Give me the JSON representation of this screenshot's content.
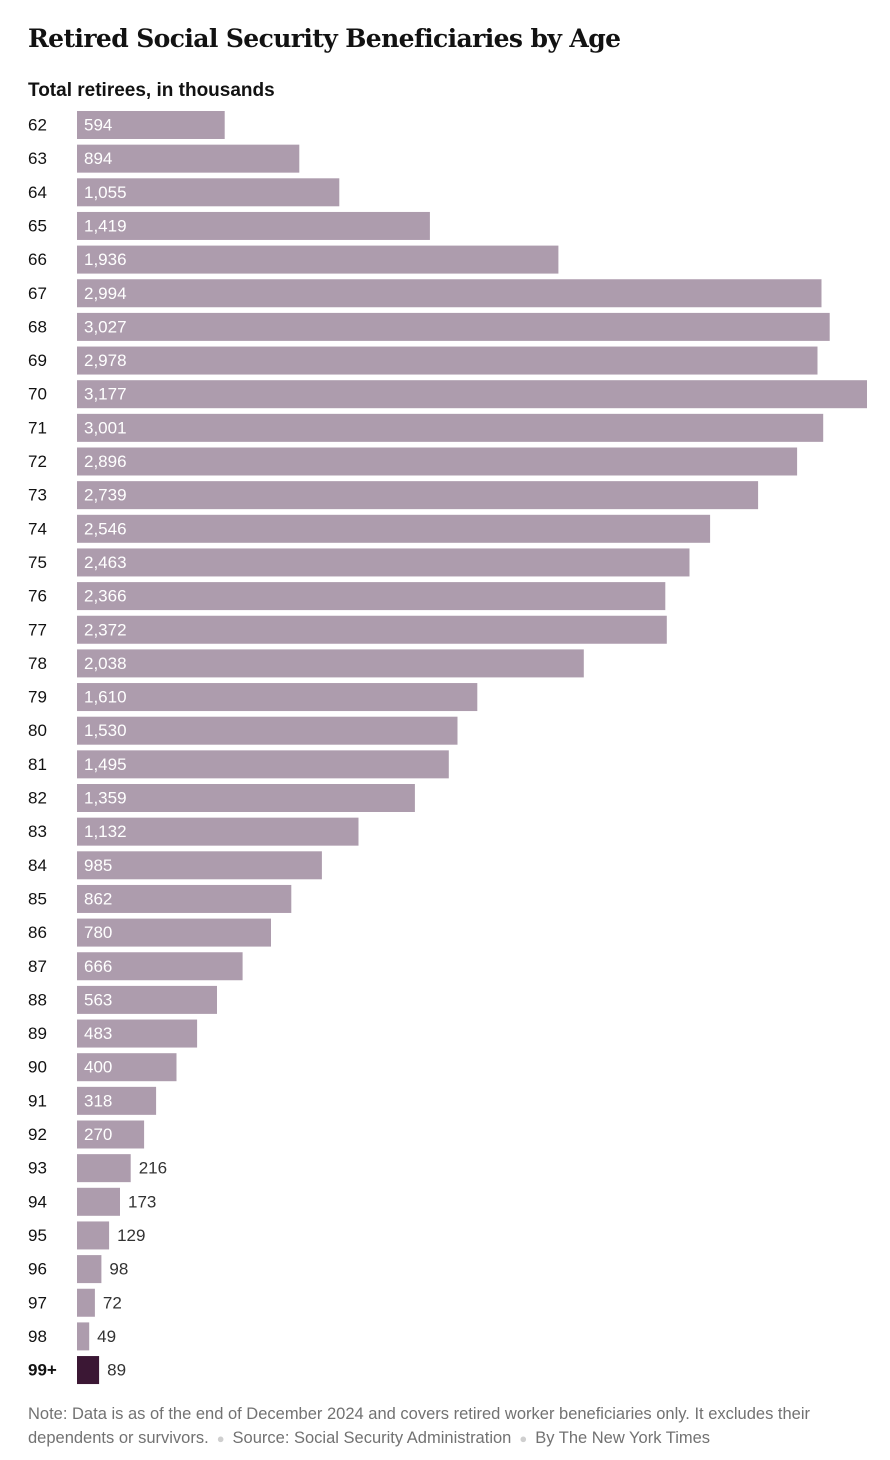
{
  "chart_data": {
    "type": "bar",
    "orientation": "horizontal",
    "title": "Retired Social Security Beneficiaries by Age",
    "subtitle": "Total retirees, in thousands",
    "categories": [
      "62",
      "63",
      "64",
      "65",
      "66",
      "67",
      "68",
      "69",
      "70",
      "71",
      "72",
      "73",
      "74",
      "75",
      "76",
      "77",
      "78",
      "79",
      "80",
      "81",
      "82",
      "83",
      "84",
      "85",
      "86",
      "87",
      "88",
      "89",
      "90",
      "91",
      "92",
      "93",
      "94",
      "95",
      "96",
      "97",
      "98",
      "99+"
    ],
    "value_labels": [
      "594",
      "894",
      "1,055",
      "1,419",
      "1,936",
      "2,994",
      "3,027",
      "2,978",
      "3,177",
      "3,001",
      "2,896",
      "2,739",
      "2,546",
      "2,463",
      "2,366",
      "2,372",
      "2,038",
      "1,610",
      "1,530",
      "1,495",
      "1,359",
      "1,132",
      "985",
      "862",
      "780",
      "666",
      "563",
      "483",
      "400",
      "318",
      "270",
      "216",
      "173",
      "129",
      "98",
      "72",
      "49",
      "89"
    ],
    "values": [
      594,
      894,
      1055,
      1419,
      1936,
      2994,
      3027,
      2978,
      3177,
      3001,
      2896,
      2739,
      2546,
      2463,
      2366,
      2372,
      2038,
      1610,
      1530,
      1495,
      1359,
      1132,
      985,
      862,
      780,
      666,
      563,
      483,
      400,
      318,
      270,
      216,
      173,
      129,
      98,
      72,
      49,
      89
    ],
    "highlight_category": "99+",
    "bar_color": "#ad9cad",
    "highlight_color": "#3b1734",
    "xlim": [
      0,
      3177
    ],
    "grid": false,
    "legend": "none"
  },
  "footnote": {
    "note": "Note: Data is as of the end of December 2024 and covers retired worker beneficiaries only. It excludes their dependents or survivors.",
    "source": "Source: Social Security Administration",
    "credit": "By The New York Times",
    "separator": "●"
  }
}
